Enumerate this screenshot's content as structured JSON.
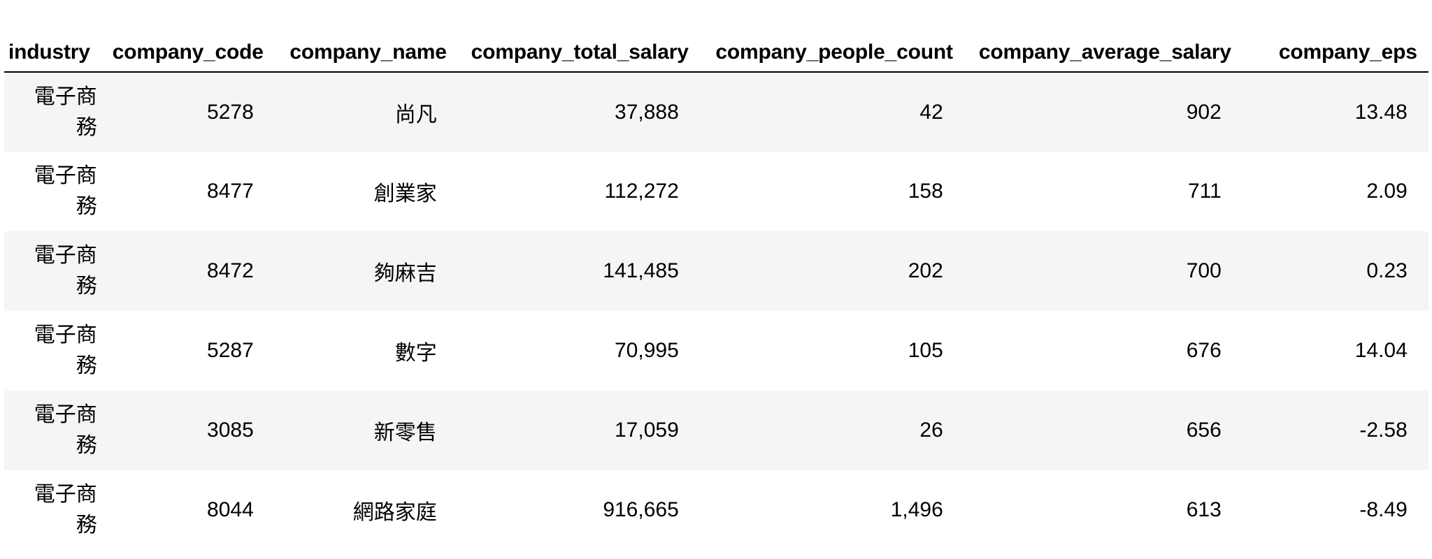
{
  "table": {
    "columns": [
      "industry",
      "company_code",
      "company_name",
      "company_total_salary",
      "company_people_count",
      "company_average_salary",
      "company_eps"
    ],
    "rows": [
      [
        "電子商務",
        "5278",
        "尚凡",
        "37,888",
        "42",
        "902",
        "13.48"
      ],
      [
        "電子商務",
        "8477",
        "創業家",
        "112,272",
        "158",
        "711",
        "2.09"
      ],
      [
        "電子商務",
        "8472",
        "夠麻吉",
        "141,485",
        "202",
        "700",
        "0.23"
      ],
      [
        "電子商務",
        "5287",
        "數字",
        "70,995",
        "105",
        "676",
        "14.04"
      ],
      [
        "電子商務",
        "3085",
        "新零售",
        "17,059",
        "26",
        "656",
        "-2.58"
      ],
      [
        "電子商務",
        "8044",
        "網路家庭",
        "916,665",
        "1,496",
        "613",
        "-8.49"
      ]
    ]
  }
}
